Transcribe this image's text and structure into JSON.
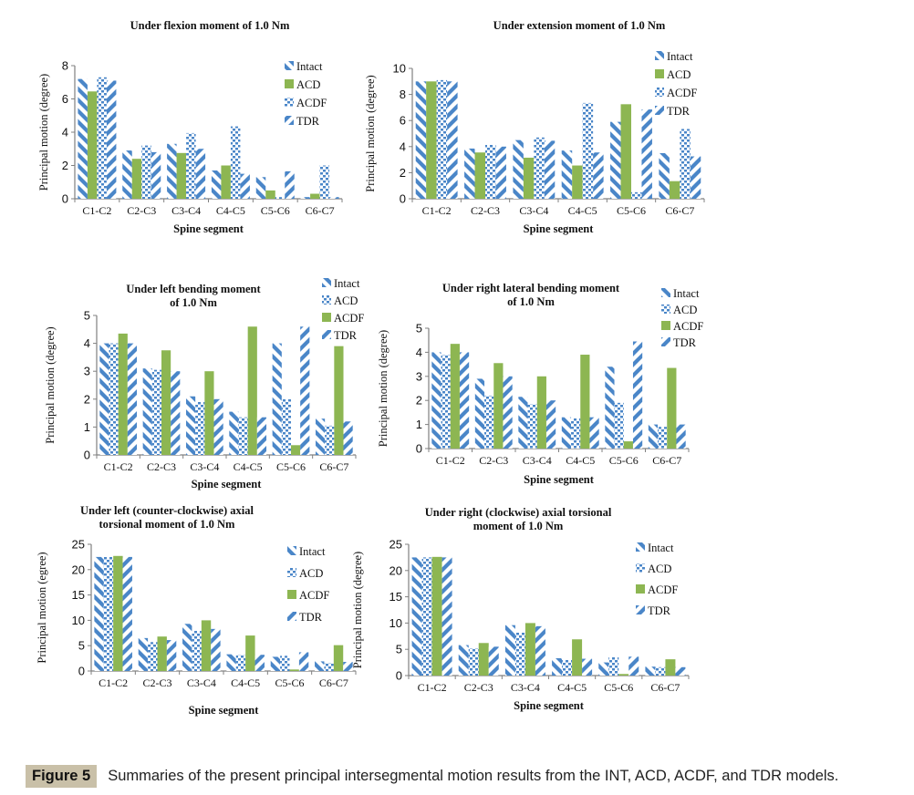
{
  "colors": {
    "blue": "#4a86c8",
    "green": "#8db652",
    "axis": "#808080"
  },
  "figure": {
    "label": "Figure 5",
    "caption": "Summaries of the present principal intersegmental motion results from the INT, ACD, ACDF, and TDR models."
  },
  "chart_data": [
    {
      "type": "bar",
      "title": [
        "Under flexion moment of 1.0 Nm"
      ],
      "xlabel": "Spine segment",
      "ylabel": "Principal motion (degree)",
      "ylim": [
        0,
        8
      ],
      "yticks": [
        "0",
        "2",
        "4",
        "6",
        "8"
      ],
      "categories": [
        "C1-C2",
        "C2-C3",
        "C3-C4",
        "C4-C5",
        "C5-C6",
        "C6-C7"
      ],
      "legend_position": "top-right",
      "series": [
        {
          "name": "Intact",
          "pattern": "diag-down",
          "values": [
            7.2,
            2.9,
            3.3,
            1.7,
            1.3,
            0.1
          ]
        },
        {
          "name": "ACD",
          "pattern": "solid",
          "values": [
            6.45,
            2.4,
            2.75,
            2.0,
            0.5,
            0.3
          ]
        },
        {
          "name": "ACDF",
          "pattern": "dots",
          "values": [
            7.3,
            3.2,
            3.95,
            4.35,
            0.1,
            2.0
          ]
        },
        {
          "name": "TDR",
          "pattern": "diag-up",
          "values": [
            7.1,
            2.8,
            3.0,
            1.5,
            1.65,
            0.1
          ]
        }
      ]
    },
    {
      "type": "bar",
      "title": [
        "Under extension moment of 1.0 Nm"
      ],
      "xlabel": "Spine segment",
      "ylabel": "Principal motion (degree)",
      "ylim": [
        0,
        10
      ],
      "yticks": [
        "0",
        "2",
        "4",
        "6",
        "8",
        "10"
      ],
      "categories": [
        "C1-C2",
        "C2-C3",
        "C3-C4",
        "C4-C5",
        "C5-C6",
        "C6-C7"
      ],
      "legend_position": "top-right",
      "series": [
        {
          "name": "Intact",
          "pattern": "diag-down",
          "values": [
            9.0,
            3.85,
            4.5,
            3.7,
            5.9,
            3.5
          ]
        },
        {
          "name": "ACD",
          "pattern": "solid",
          "values": [
            9.0,
            3.55,
            3.15,
            2.55,
            7.25,
            1.35
          ]
        },
        {
          "name": "ACDF",
          "pattern": "dots",
          "values": [
            9.1,
            4.15,
            4.7,
            7.35,
            0.5,
            5.35
          ]
        },
        {
          "name": "TDR",
          "pattern": "diag-up",
          "values": [
            9.0,
            4.0,
            4.45,
            3.55,
            6.85,
            3.25
          ]
        }
      ]
    },
    {
      "type": "bar",
      "title": [
        "Under left bending moment",
        "of 1.0 Nm"
      ],
      "xlabel": "Spine segment",
      "ylabel": "Principal motion (degree)",
      "ylim": [
        0,
        5
      ],
      "yticks": [
        "0",
        "1",
        "2",
        "3",
        "4",
        "5"
      ],
      "categories": [
        "C1-C2",
        "C2-C3",
        "C3-C4",
        "C4-C5",
        "C5-C6",
        "C6-C7"
      ],
      "legend_position": "top-right",
      "series": [
        {
          "name": "Intact",
          "pattern": "diag-down",
          "values": [
            4.0,
            3.1,
            2.1,
            1.55,
            4.0,
            1.3
          ]
        },
        {
          "name": "ACD",
          "pattern": "dots",
          "values": [
            4.0,
            3.05,
            1.9,
            1.35,
            2.0,
            1.05
          ]
        },
        {
          "name": "ACDF",
          "pattern": "solid",
          "values": [
            4.35,
            3.75,
            3.0,
            4.6,
            0.35,
            3.9
          ]
        },
        {
          "name": "TDR",
          "pattern": "diag-up",
          "values": [
            4.0,
            3.0,
            2.0,
            1.35,
            4.6,
            1.2
          ]
        }
      ]
    },
    {
      "type": "bar",
      "title": [
        "Under right lateral bending moment",
        "of 1.0 Nm"
      ],
      "xlabel": "Spine segment",
      "ylabel": "Principal motion (degree)",
      "ylim": [
        0,
        5
      ],
      "yticks": [
        "0",
        "1",
        "2",
        "3",
        "4",
        "5"
      ],
      "categories": [
        "C1-C2",
        "C2-C3",
        "C3-C4",
        "C4-C5",
        "C5-C6",
        "C6-C7"
      ],
      "legend_position": "top-right",
      "series": [
        {
          "name": "Intact",
          "pattern": "diag-down",
          "values": [
            4.0,
            2.9,
            2.15,
            1.3,
            3.4,
            1.0
          ]
        },
        {
          "name": "ACD",
          "pattern": "dots",
          "values": [
            3.9,
            2.2,
            1.85,
            1.25,
            1.9,
            0.9
          ]
        },
        {
          "name": "ACDF",
          "pattern": "solid",
          "values": [
            4.35,
            3.55,
            3.0,
            3.9,
            0.3,
            3.35
          ]
        },
        {
          "name": "TDR",
          "pattern": "diag-up",
          "values": [
            4.0,
            3.0,
            2.0,
            1.3,
            4.45,
            1.0
          ]
        }
      ]
    },
    {
      "type": "bar",
      "title": [
        "Under left (counter-clockwise) axial",
        "torsional moment of 1.0 Nm"
      ],
      "xlabel": "Spine segment",
      "ylabel": "Principal motion (egree)",
      "ylim": [
        0,
        25
      ],
      "yticks": [
        "0",
        "5",
        "10",
        "15",
        "20",
        "25"
      ],
      "categories": [
        "C1-C2",
        "C2-C3",
        "C3-C4",
        "C4-C5",
        "C5-C6",
        "C6-C7"
      ],
      "legend_position": "right",
      "series": [
        {
          "name": "Intact",
          "pattern": "diag-down",
          "values": [
            22.5,
            6.5,
            9.3,
            3.3,
            2.8,
            1.9
          ]
        },
        {
          "name": "ACD",
          "pattern": "dots",
          "values": [
            22.5,
            5.7,
            8.0,
            3.2,
            3.0,
            1.6
          ]
        },
        {
          "name": "ACDF",
          "pattern": "solid",
          "values": [
            22.7,
            6.8,
            10.0,
            7.0,
            0.3,
            5.1
          ]
        },
        {
          "name": "TDR",
          "pattern": "diag-up",
          "values": [
            22.5,
            6.1,
            8.3,
            3.2,
            3.7,
            1.8
          ]
        }
      ]
    },
    {
      "type": "bar",
      "title": [
        "Under right (clockwise) axial torsional",
        "moment of 1.0 Nm"
      ],
      "xlabel": "Spine segment",
      "ylabel": "Principal motion (degree)",
      "ylim": [
        0,
        25
      ],
      "yticks": [
        "0",
        "5",
        "10",
        "15",
        "20",
        "25"
      ],
      "categories": [
        "C1-C2",
        "C2-C3",
        "C3-C4",
        "C4-C5",
        "C5-C6",
        "C6-C7"
      ],
      "legend_position": "right",
      "series": [
        {
          "name": "Intact",
          "pattern": "diag-down",
          "values": [
            22.5,
            5.8,
            9.6,
            3.3,
            2.5,
            1.7
          ]
        },
        {
          "name": "ACD",
          "pattern": "dots",
          "values": [
            22.5,
            5.2,
            8.2,
            3.0,
            3.5,
            1.6
          ]
        },
        {
          "name": "ACDF",
          "pattern": "solid",
          "values": [
            22.6,
            6.2,
            10.0,
            6.9,
            0.3,
            3.1
          ]
        },
        {
          "name": "TDR",
          "pattern": "diag-up",
          "values": [
            22.5,
            5.5,
            9.4,
            3.2,
            3.6,
            1.6
          ]
        }
      ]
    }
  ]
}
